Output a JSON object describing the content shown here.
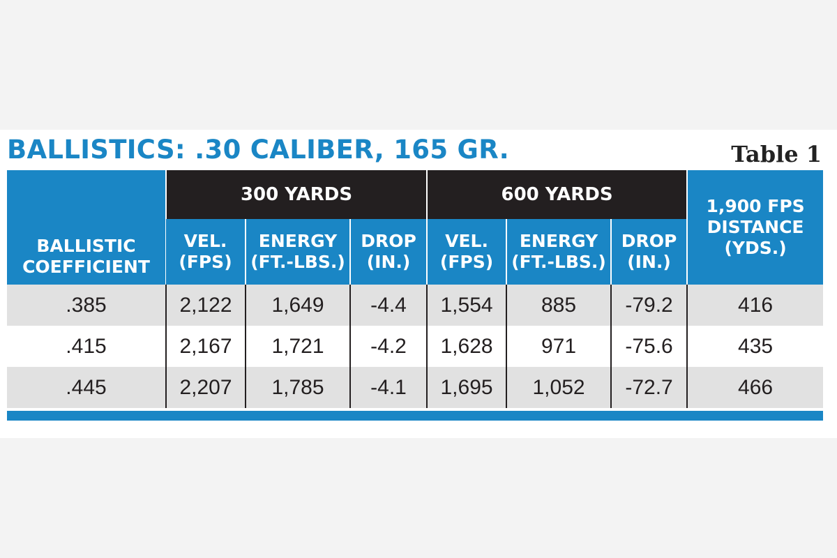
{
  "title": "BALLISTICS: .30 CALIBER, 165 GR.",
  "table_label": "Table 1",
  "headers": {
    "bc": [
      "BALLISTIC",
      "COEFFICIENT"
    ],
    "range_300": "300 YARDS",
    "range_600": "600 YARDS",
    "distance": [
      "1,900 FPS",
      "DISTANCE",
      "(YDS.)"
    ],
    "vel": [
      "VEL.",
      "(FPS)"
    ],
    "energy": [
      "ENERGY",
      "(FT.-LBS.)"
    ],
    "drop": [
      "DROP",
      "(IN.)"
    ]
  },
  "rows": [
    {
      "bc": ".385",
      "vel300": "2,122",
      "energy300": "1,649",
      "drop300": "-4.4",
      "vel600": "1,554",
      "energy600": "885",
      "drop600": "-79.2",
      "distance": "416"
    },
    {
      "bc": ".415",
      "vel300": "2,167",
      "energy300": "1,721",
      "drop300": "-4.2",
      "vel600": "1,628",
      "energy600": "971",
      "drop600": "-75.6",
      "distance": "435"
    },
    {
      "bc": ".445",
      "vel300": "2,207",
      "energy300": "1,785",
      "drop300": "-4.1",
      "vel600": "1,695",
      "energy600": "1,052",
      "drop600": "-72.7",
      "distance": "466"
    }
  ],
  "colors": {
    "accent_blue": "#1a86c5",
    "header_black": "#231f20",
    "row_gray": "#e1e1e1"
  }
}
